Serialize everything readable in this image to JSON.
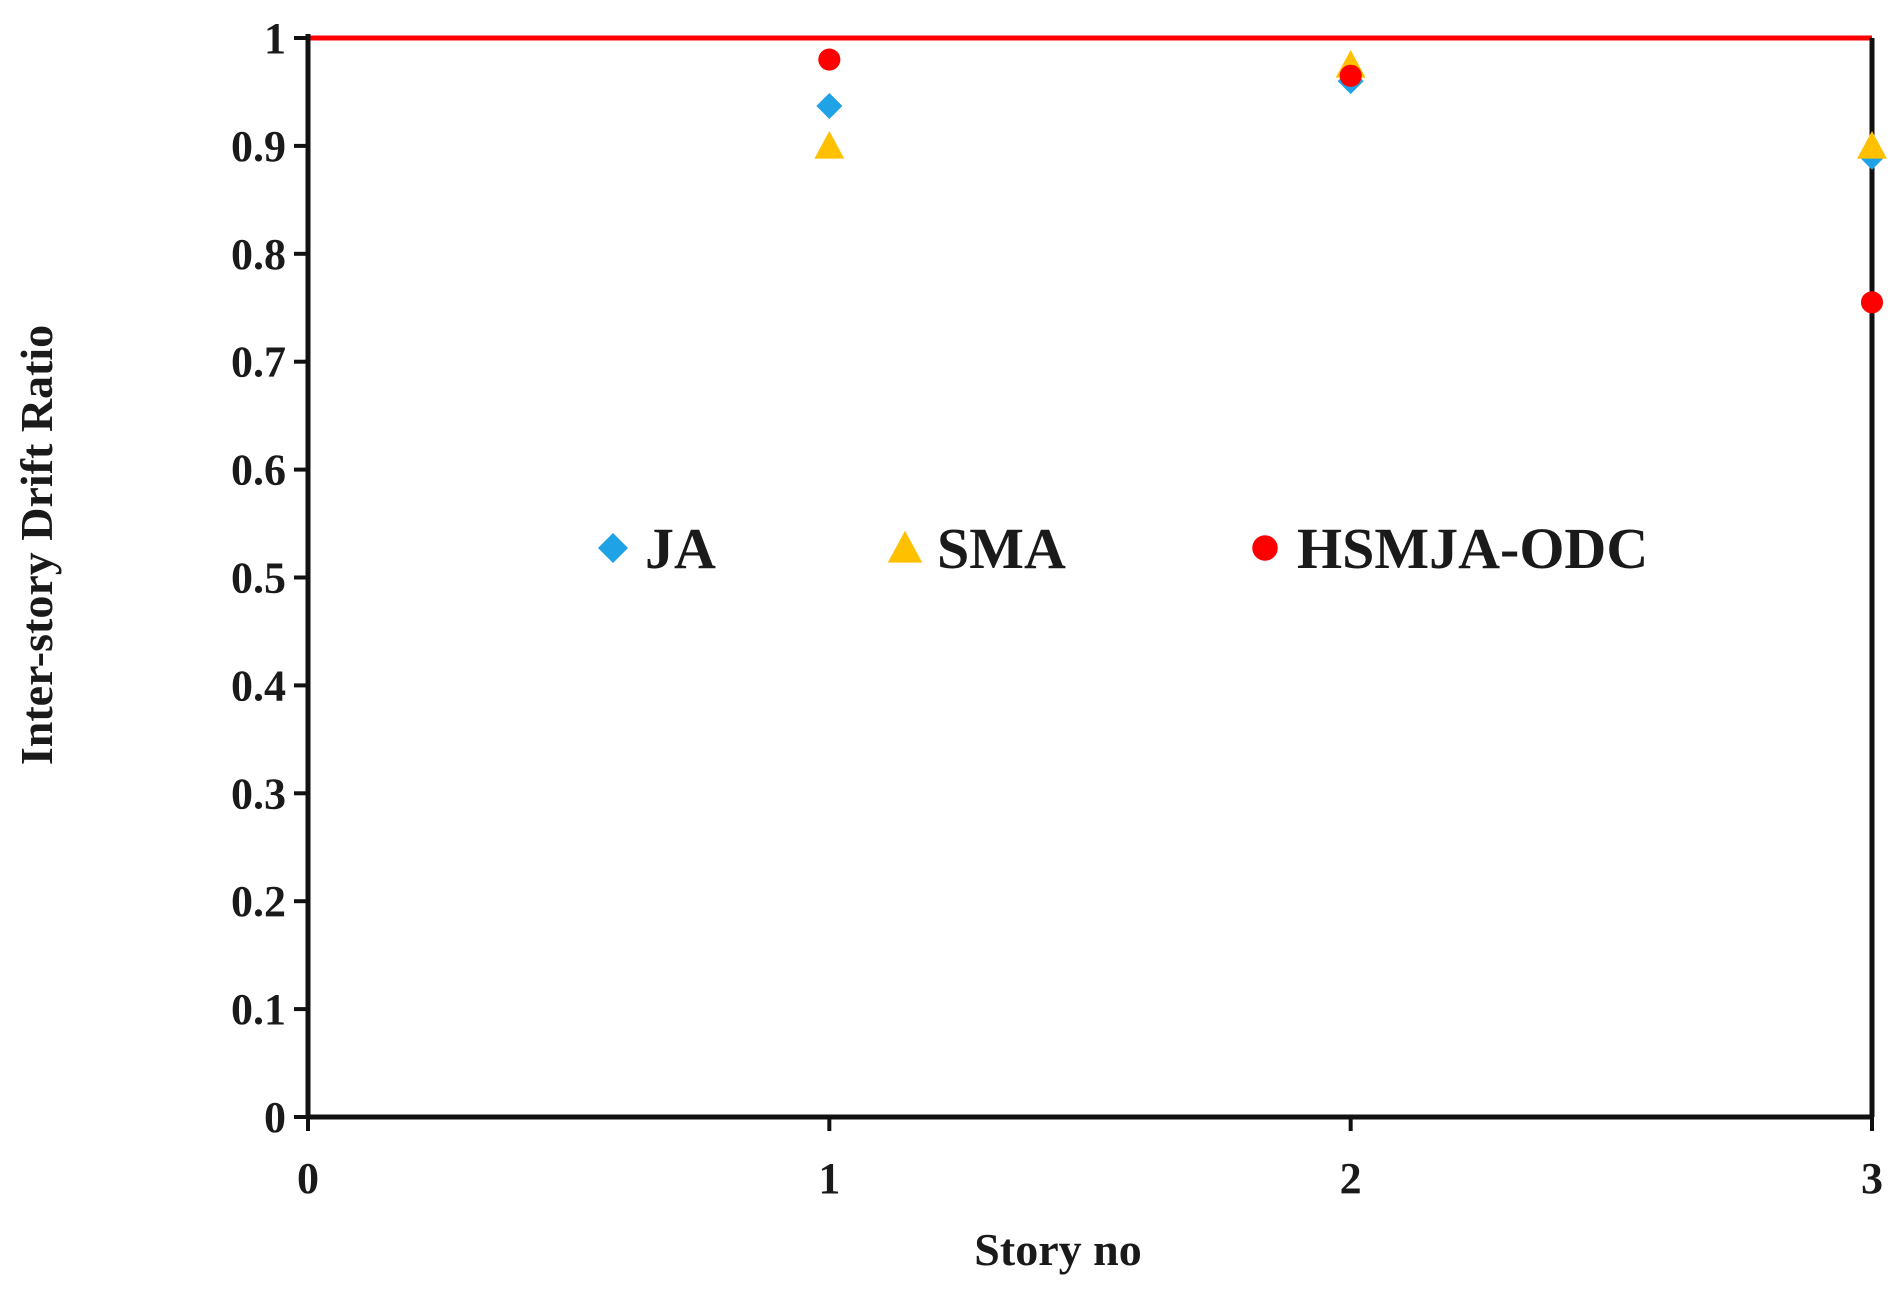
{
  "chart_data": {
    "type": "scatter",
    "xlabel": "Story no",
    "ylabel": "Inter-story Drift Ratio",
    "xlim": [
      0,
      3
    ],
    "ylim": [
      0,
      1
    ],
    "xticks": [
      "0",
      "1",
      "2",
      "3"
    ],
    "yticks": [
      "0",
      "0.1",
      "0.2",
      "0.3",
      "0.4",
      "0.5",
      "0.6",
      "0.7",
      "0.8",
      "0.9",
      "1"
    ],
    "grid": false,
    "legend_position": "center",
    "reference_line": {
      "y": 1,
      "color": "#ff0000"
    },
    "series": [
      {
        "name": "JA",
        "marker": "diamond",
        "color": "#1fa3e6",
        "x": [
          1,
          2,
          3
        ],
        "y": [
          0.937,
          0.96,
          0.89
        ]
      },
      {
        "name": "SMA",
        "marker": "triangle",
        "color": "#ffc000",
        "x": [
          1,
          2,
          3
        ],
        "y": [
          0.9,
          0.975,
          0.9
        ]
      },
      {
        "name": "HSMJA-ODC",
        "marker": "circle",
        "color": "#ff0000",
        "x": [
          1,
          2,
          3
        ],
        "y": [
          0.98,
          0.965,
          0.755
        ]
      }
    ]
  }
}
